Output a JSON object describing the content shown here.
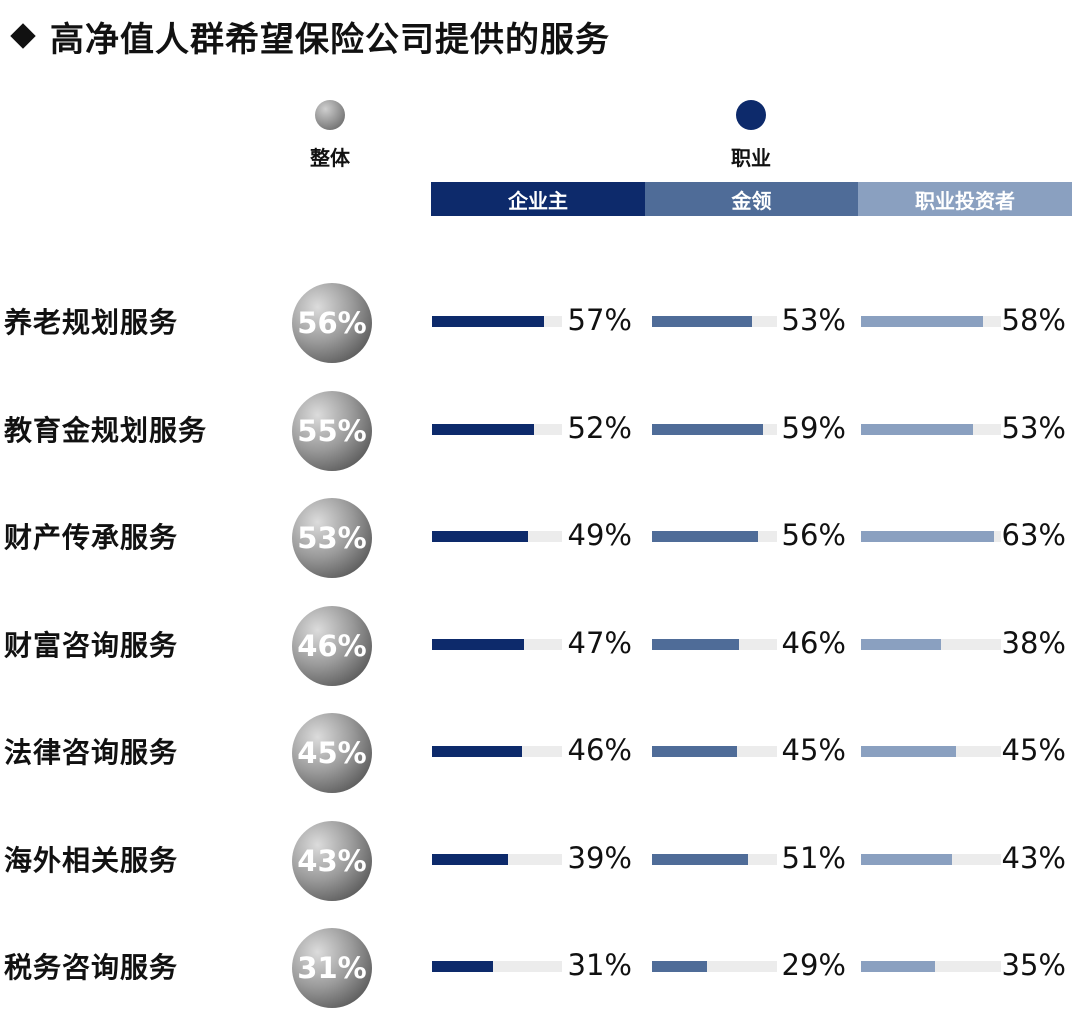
{
  "title": "高净值人群希望保险公司提供的服务",
  "legend": {
    "overall": {
      "label": "整体",
      "color": "#888888"
    },
    "occupation": {
      "label": "职业",
      "color": "#0d2a6b"
    }
  },
  "colors": {
    "track": "#ececec",
    "series": [
      "#0d2a6b",
      "#4f6c98",
      "#8aa0c0"
    ]
  },
  "chart_data": {
    "type": "bar",
    "title": "高净值人群希望保险公司提供的服务",
    "categories": [
      "养老规划服务",
      "教育金规划服务",
      "财产传承服务",
      "财富咨询服务",
      "法律咨询服务",
      "海外相关服务",
      "税务咨询服务"
    ],
    "overall": {
      "name": "整体",
      "values": [
        56,
        55,
        53,
        46,
        45,
        43,
        31
      ]
    },
    "group_label": "职业",
    "series": [
      {
        "name": "企业主",
        "values": [
          57,
          52,
          49,
          47,
          46,
          39,
          31
        ]
      },
      {
        "name": "金领",
        "values": [
          53,
          59,
          56,
          46,
          45,
          51,
          29
        ]
      },
      {
        "name": "职业投资者",
        "values": [
          58,
          53,
          63,
          38,
          45,
          43,
          35
        ]
      }
    ],
    "unit": "%",
    "ylim": [
      0,
      100
    ]
  }
}
